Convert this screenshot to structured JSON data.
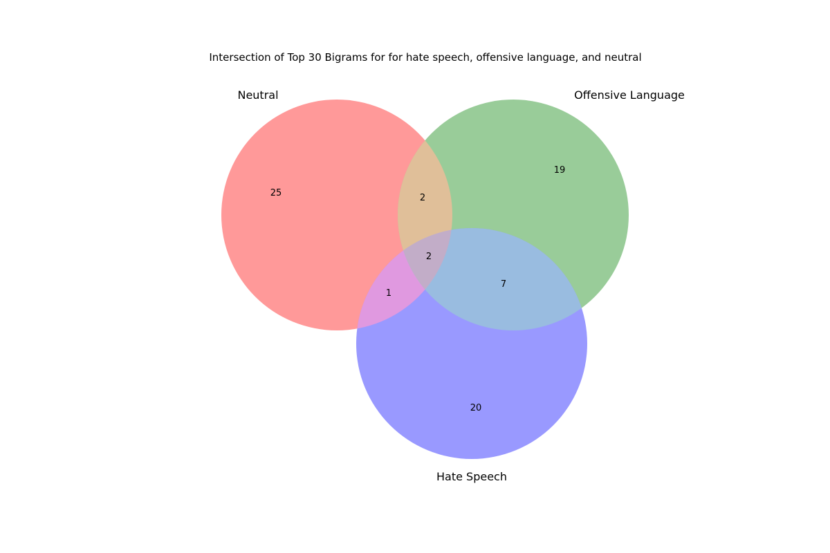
{
  "title": "Intersection of Top 30 Bigrams for for hate speech, offensive language, and neutral",
  "sets": {
    "neutral": {
      "label": "Neutral",
      "color": "#ff9999"
    },
    "offensive": {
      "label": "Offensive Language",
      "color": "#99cc99"
    },
    "hate": {
      "label": "Hate Speech",
      "color": "#9999ff"
    }
  },
  "region_colors": {
    "neutral_offensive": "#e0bf99",
    "neutral_hate": "#e099e0",
    "offensive_hate": "#99bce0",
    "all_three": "#c2adc8"
  },
  "counts": {
    "neutral_only": "25",
    "offensive_only": "19",
    "hate_only": "20",
    "neutral_offensive": "2",
    "neutral_hate": "1",
    "offensive_hate": "7",
    "all_three": "2"
  }
}
